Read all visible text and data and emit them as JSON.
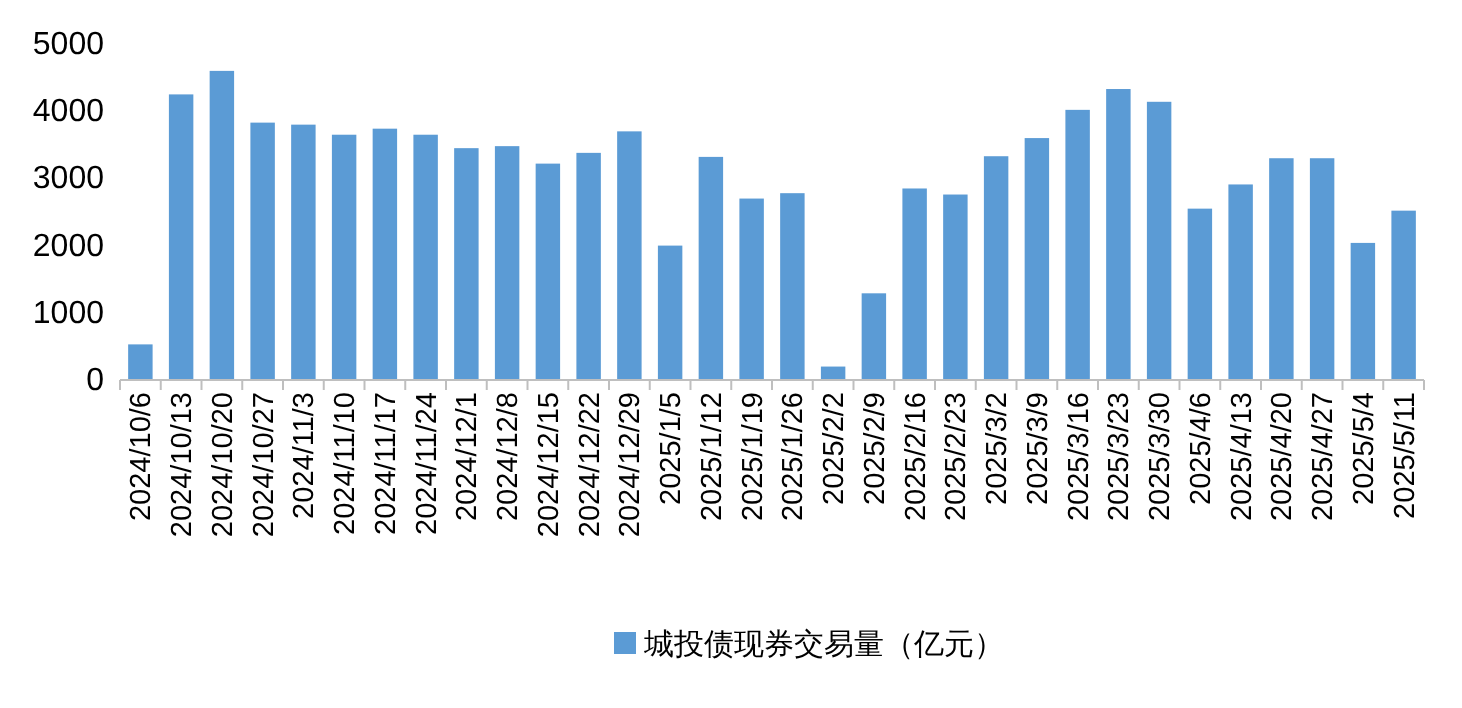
{
  "chart_data": {
    "type": "bar",
    "categories": [
      "2024/10/6",
      "2024/10/13",
      "2024/10/20",
      "2024/10/27",
      "2024/11/3",
      "2024/11/10",
      "2024/11/17",
      "2024/11/24",
      "2024/12/1",
      "2024/12/8",
      "2024/12/15",
      "2024/12/22",
      "2024/12/29",
      "2025/1/5",
      "2025/1/12",
      "2025/1/19",
      "2025/1/26",
      "2025/2/2",
      "2025/2/9",
      "2025/2/16",
      "2025/2/23",
      "2025/3/2",
      "2025/3/9",
      "2025/3/16",
      "2025/3/23",
      "2025/3/30",
      "2025/4/6",
      "2025/4/13",
      "2025/4/20",
      "2025/4/27",
      "2025/5/4",
      "2025/5/11"
    ],
    "series": [
      {
        "name": "城投债现券交易量（亿元）",
        "color": "#5b9bd5",
        "values": [
          530,
          4250,
          4600,
          3830,
          3800,
          3650,
          3740,
          3650,
          3450,
          3480,
          3220,
          3380,
          3700,
          2000,
          3320,
          2700,
          2780,
          200,
          1290,
          2850,
          2760,
          3330,
          3600,
          4020,
          4330,
          4140,
          2550,
          2910,
          3300,
          3300,
          2040,
          2520
        ]
      }
    ],
    "ylim": [
      0,
      5000
    ],
    "yticks": [
      0,
      1000,
      2000,
      3000,
      4000,
      5000
    ],
    "legend": "bottom"
  }
}
